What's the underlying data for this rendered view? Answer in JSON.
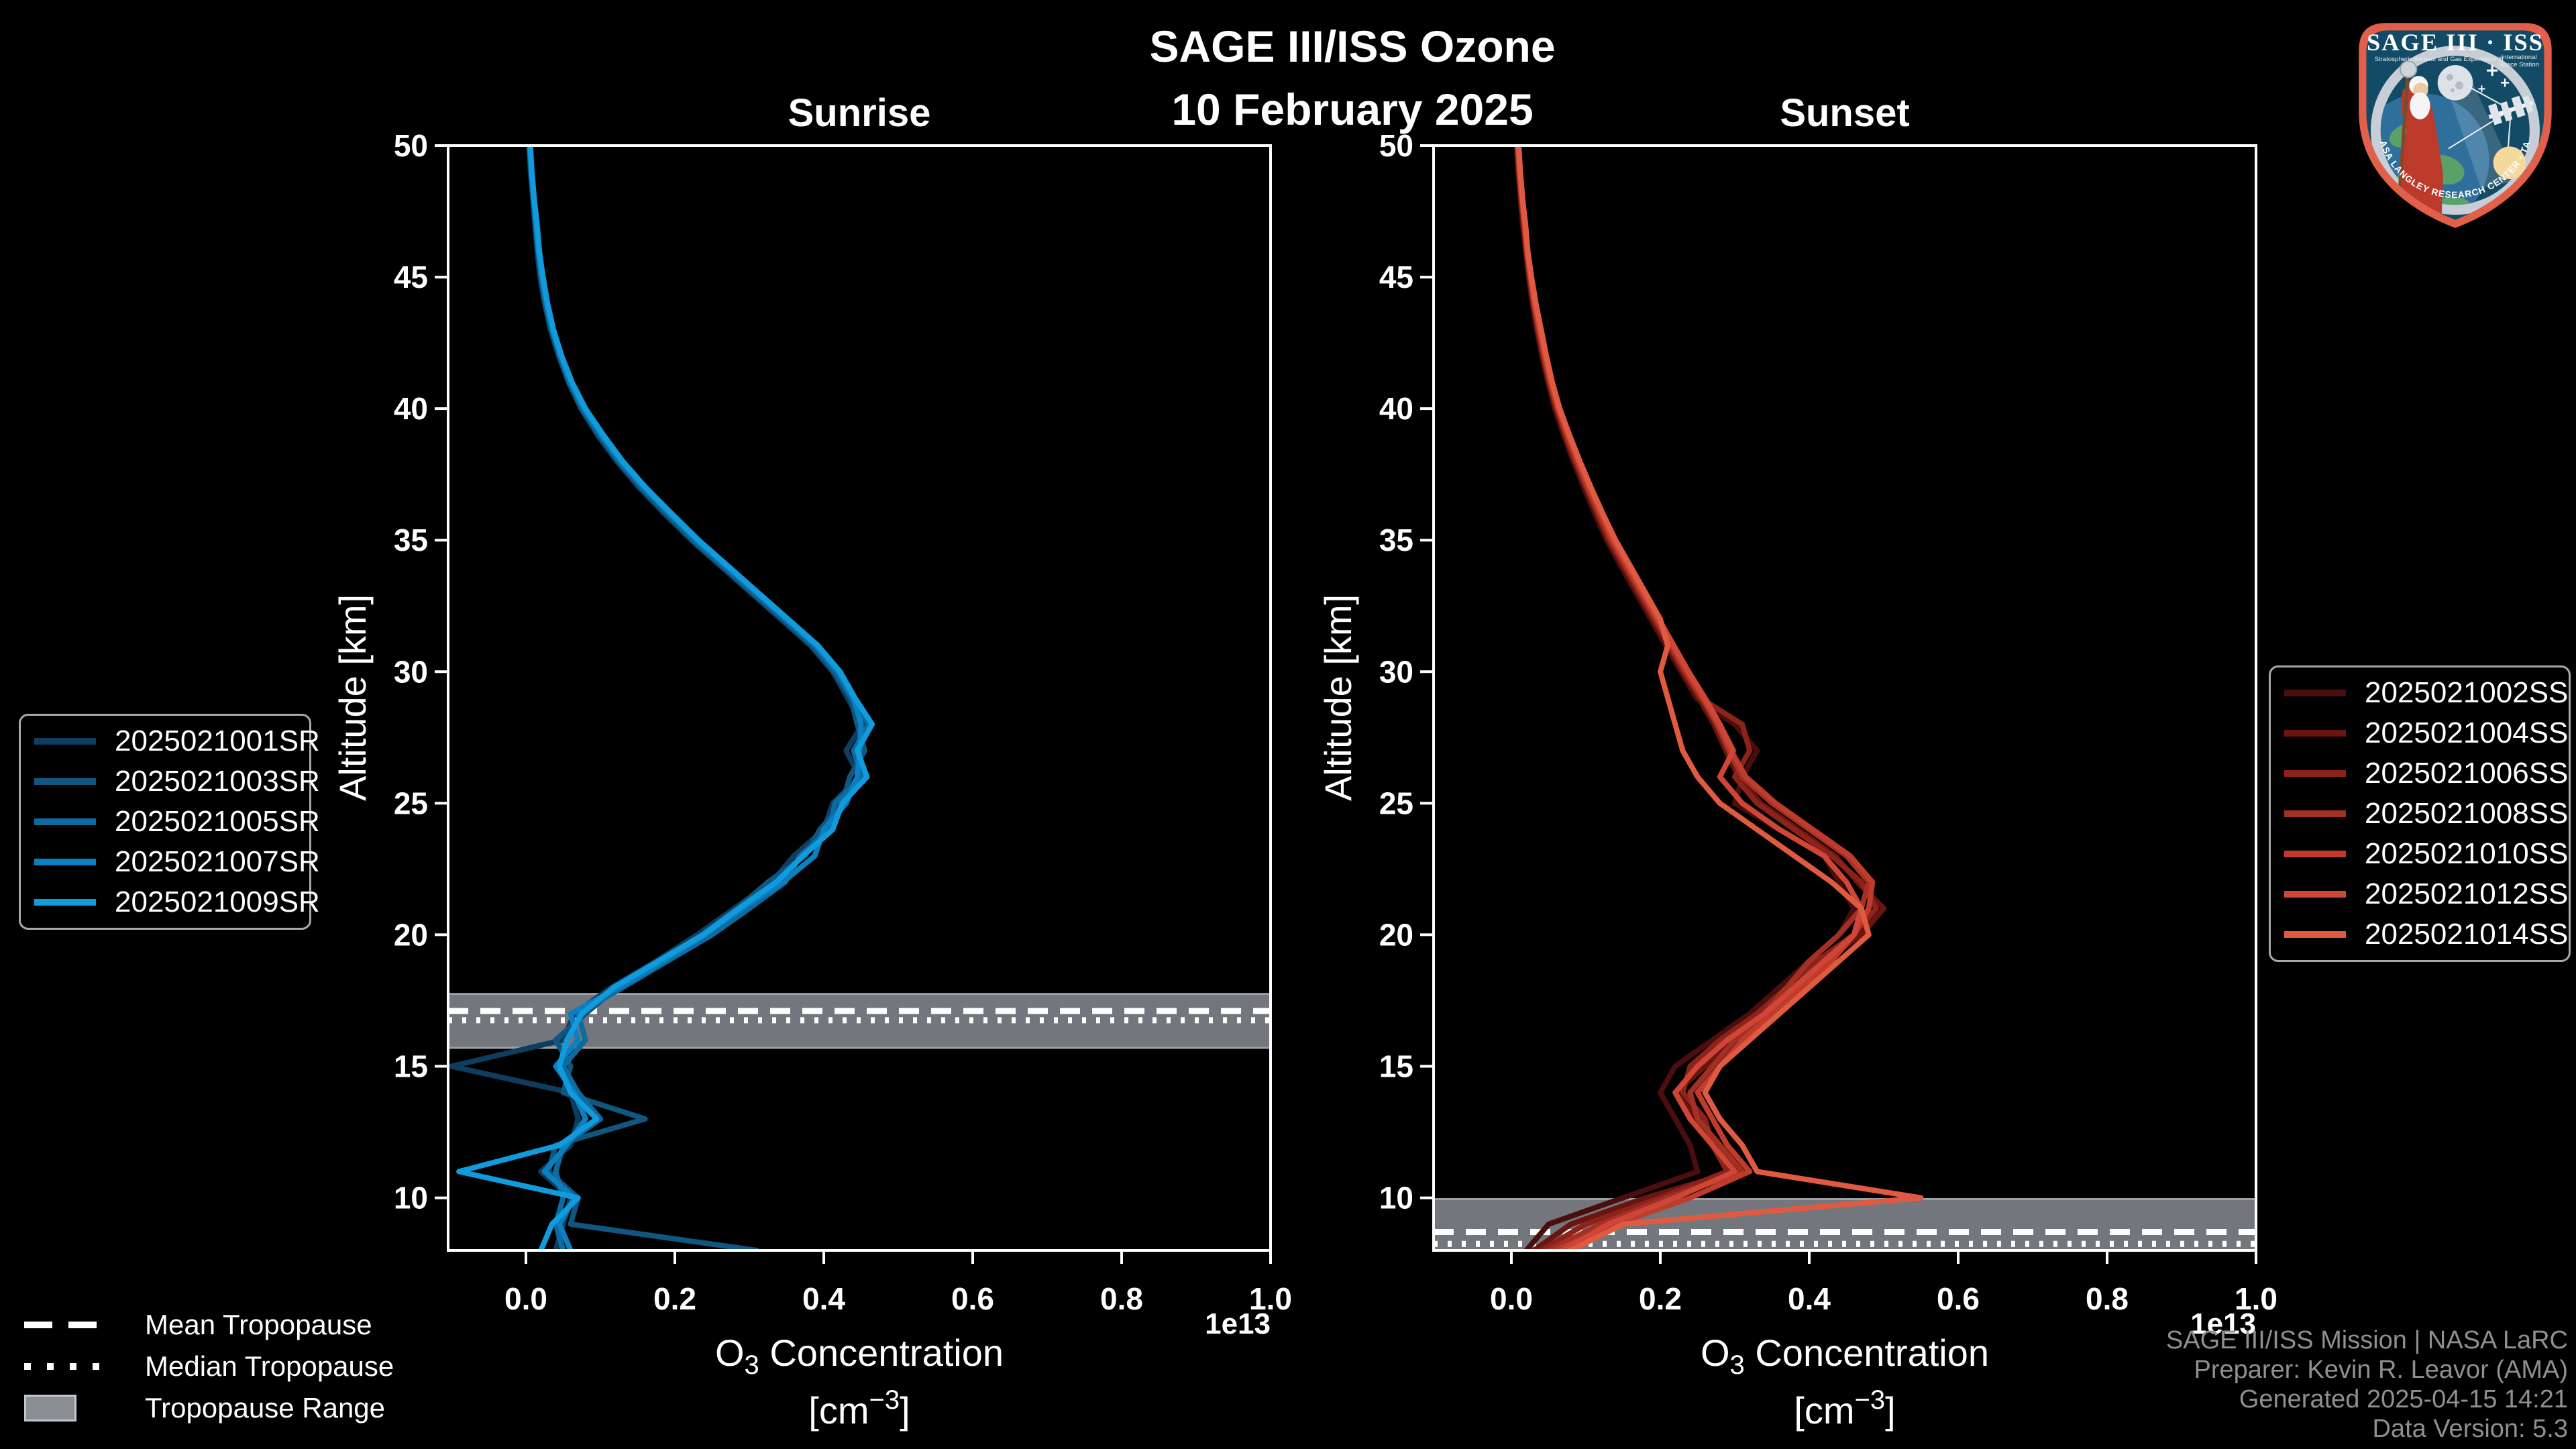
{
  "title": {
    "line1": "SAGE III/ISS Ozone",
    "line2": "10 February 2025"
  },
  "footer": {
    "line1": "SAGE III/ISS Mission | NASA LaRC",
    "line2": "Preparer: Kevin R. Leavor (AMA)",
    "line3": "Generated 2025-04-15 14:21",
    "line4": "Data Version: 5.3"
  },
  "tropopause_legend": {
    "mean_label": "Mean Tropopause",
    "median_label": "Median Tropopause",
    "range_label": "Tropopause Range"
  },
  "logo": {
    "mission": "SAGE III · ISS",
    "sub_left": "Stratospheric Aerosol and Gas Experiment III",
    "sub_right1": "International",
    "sub_right2": "Space Station",
    "ring_text": "BALL • NASA LANGLEY RESEARCH CENTER • TAS-I • ESA"
  },
  "colors": {
    "background": "#000000",
    "axis": "#ffffff",
    "band_fill": "#73777d",
    "band_edge": "#9ba0a5",
    "credits_gray": "#8d9093"
  },
  "chart_data": [
    {
      "type": "line",
      "title": "Sunrise",
      "ylabel": "Altitude [km]",
      "xlabel_parts": {
        "prefix": "O",
        "sub": "3",
        "suffix": " Concentration",
        "unit_open": "[cm",
        "unit_sup": "−3",
        "unit_close": "]"
      },
      "offset_text": "1e13",
      "xlim": [
        -0.1045,
        1.0
      ],
      "ylim": [
        8,
        50
      ],
      "x_ticks": [
        0.0,
        0.2,
        0.4,
        0.6,
        0.8,
        1.0
      ],
      "x_tick_labels": [
        "0.0",
        "0.2",
        "0.4",
        "0.6",
        "0.8",
        "1.0"
      ],
      "y_ticks": [
        50,
        45,
        40,
        35,
        30,
        25,
        20,
        15,
        10
      ],
      "y_tick_labels": [
        "50",
        "45",
        "40",
        "35",
        "30",
        "25",
        "20",
        "15",
        "10"
      ],
      "grid": false,
      "legend_position": "left-outside",
      "tropopause": {
        "mean": 17.1,
        "median": 16.75,
        "range": [
          15.7,
          17.75
        ]
      },
      "altitudes": [
        50,
        49,
        48,
        47,
        46,
        45,
        44,
        43,
        42,
        41,
        40,
        39,
        38,
        37,
        36,
        35,
        34,
        33,
        32,
        31,
        30,
        29,
        28,
        27,
        26,
        25,
        24,
        23,
        22,
        21,
        20,
        19,
        18,
        17,
        16,
        15,
        14,
        13,
        12,
        11,
        10,
        9,
        8
      ],
      "series": [
        {
          "name": "2025021001SR",
          "color": "#0e3d60",
          "values": [
            0.004,
            0.006,
            0.009,
            0.012,
            0.015,
            0.019,
            0.025,
            0.033,
            0.044,
            0.057,
            0.074,
            0.096,
            0.122,
            0.152,
            0.186,
            0.222,
            0.262,
            0.302,
            0.342,
            0.382,
            0.412,
            0.432,
            0.452,
            0.43,
            0.448,
            0.412,
            0.4,
            0.36,
            0.33,
            0.28,
            0.23,
            0.175,
            0.115,
            0.065,
            0.05,
            -0.1,
            0.06,
            0.07,
            0.06,
            0.02,
            0.06,
            0.05,
            0.04
          ]
        },
        {
          "name": "2025021003SR",
          "color": "#10567f",
          "values": [
            0.005,
            0.007,
            0.01,
            0.013,
            0.016,
            0.02,
            0.026,
            0.034,
            0.045,
            0.058,
            0.075,
            0.098,
            0.124,
            0.154,
            0.189,
            0.224,
            0.264,
            0.304,
            0.345,
            0.384,
            0.414,
            0.436,
            0.445,
            0.455,
            0.435,
            0.425,
            0.395,
            0.375,
            0.325,
            0.284,
            0.236,
            0.18,
            0.122,
            0.08,
            0.04,
            0.06,
            0.05,
            0.16,
            0.04,
            0.03,
            0.07,
            0.06,
            0.31
          ]
        },
        {
          "name": "2025021005SR",
          "color": "#0d6ba0",
          "values": [
            0.005,
            0.007,
            0.01,
            0.013,
            0.017,
            0.021,
            0.027,
            0.035,
            0.046,
            0.059,
            0.077,
            0.1,
            0.126,
            0.157,
            0.192,
            0.227,
            0.267,
            0.308,
            0.348,
            0.388,
            0.417,
            0.438,
            0.46,
            0.44,
            0.452,
            0.415,
            0.408,
            0.368,
            0.348,
            0.3,
            0.25,
            0.19,
            0.13,
            0.07,
            0.08,
            0.05,
            0.07,
            0.1,
            0.05,
            0.04,
            0.05,
            0.04,
            0.05
          ]
        },
        {
          "name": "2025021007SR",
          "color": "#0c7fc0",
          "values": [
            0.005,
            0.008,
            0.011,
            0.014,
            0.017,
            0.022,
            0.028,
            0.036,
            0.047,
            0.061,
            0.078,
            0.102,
            0.128,
            0.159,
            0.194,
            0.23,
            0.27,
            0.31,
            0.35,
            0.39,
            0.42,
            0.44,
            0.45,
            0.448,
            0.445,
            0.43,
            0.4,
            0.388,
            0.345,
            0.29,
            0.24,
            0.185,
            0.125,
            0.06,
            0.07,
            0.04,
            0.065,
            0.08,
            0.055,
            0.025,
            0.065,
            0.045,
            0.06
          ]
        },
        {
          "name": "2025021009SR",
          "color": "#109bdd",
          "values": [
            0.006,
            0.008,
            0.011,
            0.015,
            0.018,
            0.023,
            0.029,
            0.037,
            0.048,
            0.062,
            0.08,
            0.104,
            0.13,
            0.161,
            0.196,
            0.232,
            0.272,
            0.312,
            0.352,
            0.392,
            0.422,
            0.442,
            0.465,
            0.445,
            0.458,
            0.425,
            0.412,
            0.372,
            0.336,
            0.286,
            0.238,
            0.178,
            0.118,
            0.075,
            0.055,
            0.045,
            0.06,
            0.095,
            0.045,
            -0.09,
            0.07,
            0.035,
            0.02
          ]
        }
      ]
    },
    {
      "type": "line",
      "title": "Sunset",
      "ylabel": "Altitude [km]",
      "xlabel_parts": {
        "prefix": "O",
        "sub": "3",
        "suffix": " Concentration",
        "unit_open": "[cm",
        "unit_sup": "−3",
        "unit_close": "]"
      },
      "offset_text": "1e13",
      "xlim": [
        -0.1045,
        1.0
      ],
      "ylim": [
        8,
        50
      ],
      "x_ticks": [
        0.0,
        0.2,
        0.4,
        0.6,
        0.8,
        1.0
      ],
      "x_tick_labels": [
        "0.0",
        "0.2",
        "0.4",
        "0.6",
        "0.8",
        "1.0"
      ],
      "y_ticks": [
        50,
        45,
        40,
        35,
        30,
        25,
        20,
        15,
        10
      ],
      "y_tick_labels": [
        "50",
        "45",
        "40",
        "35",
        "30",
        "25",
        "20",
        "15",
        "10"
      ],
      "grid": false,
      "legend_position": "right-outside",
      "tropopause": {
        "mean": 8.7,
        "median": 8.25,
        "range": [
          7.2,
          9.95
        ]
      },
      "altitudes": [
        50,
        49,
        48,
        47,
        46,
        45,
        44,
        43,
        42,
        41,
        40,
        39,
        38,
        37,
        36,
        35,
        34,
        33,
        32,
        31,
        30,
        29,
        28,
        27,
        26,
        25,
        24,
        23,
        22,
        21,
        20,
        19,
        18,
        17,
        16,
        15,
        14,
        13,
        12,
        11,
        10,
        9,
        8
      ],
      "series": [
        {
          "name": "2025021002SS",
          "color": "#4a0e0e",
          "values": [
            0.007,
            0.009,
            0.012,
            0.015,
            0.019,
            0.023,
            0.028,
            0.034,
            0.041,
            0.049,
            0.058,
            0.07,
            0.083,
            0.097,
            0.112,
            0.128,
            0.147,
            0.167,
            0.187,
            0.207,
            0.228,
            0.248,
            0.3,
            0.33,
            0.31,
            0.3,
            0.36,
            0.42,
            0.44,
            0.46,
            0.44,
            0.4,
            0.36,
            0.32,
            0.27,
            0.22,
            0.2,
            0.22,
            0.24,
            0.25,
            0.15,
            0.05,
            0.02
          ]
        },
        {
          "name": "2025021004SS",
          "color": "#6b1511",
          "values": [
            0.008,
            0.01,
            0.013,
            0.016,
            0.02,
            0.024,
            0.029,
            0.035,
            0.042,
            0.05,
            0.06,
            0.072,
            0.085,
            0.1,
            0.115,
            0.13,
            0.15,
            0.17,
            0.19,
            0.21,
            0.23,
            0.252,
            0.272,
            0.288,
            0.305,
            0.335,
            0.385,
            0.435,
            0.465,
            0.5,
            0.47,
            0.42,
            0.38,
            0.35,
            0.3,
            0.26,
            0.22,
            0.25,
            0.28,
            0.3,
            0.18,
            0.08,
            0.03
          ]
        },
        {
          "name": "2025021006SS",
          "color": "#8c231a",
          "values": [
            0.008,
            0.01,
            0.013,
            0.017,
            0.02,
            0.025,
            0.03,
            0.036,
            0.043,
            0.051,
            0.061,
            0.073,
            0.086,
            0.101,
            0.116,
            0.132,
            0.152,
            0.172,
            0.192,
            0.212,
            0.232,
            0.254,
            0.31,
            0.32,
            0.3,
            0.33,
            0.38,
            0.43,
            0.47,
            0.49,
            0.46,
            0.41,
            0.37,
            0.33,
            0.28,
            0.24,
            0.23,
            0.26,
            0.27,
            0.29,
            0.2,
            0.1,
            0.04
          ]
        },
        {
          "name": "2025021008SS",
          "color": "#a33024",
          "values": [
            0.008,
            0.011,
            0.014,
            0.017,
            0.021,
            0.025,
            0.03,
            0.037,
            0.044,
            0.052,
            0.062,
            0.074,
            0.088,
            0.102,
            0.118,
            0.134,
            0.154,
            0.174,
            0.194,
            0.214,
            0.234,
            0.256,
            0.276,
            0.292,
            0.31,
            0.35,
            0.4,
            0.45,
            0.48,
            0.47,
            0.44,
            0.4,
            0.37,
            0.34,
            0.3,
            0.27,
            0.24,
            0.25,
            0.28,
            0.31,
            0.21,
            0.12,
            0.05
          ]
        },
        {
          "name": "2025021010SS",
          "color": "#bf3b2b",
          "values": [
            0.009,
            0.011,
            0.014,
            0.018,
            0.021,
            0.026,
            0.031,
            0.038,
            0.045,
            0.053,
            0.063,
            0.076,
            0.089,
            0.104,
            0.12,
            0.136,
            0.156,
            0.176,
            0.196,
            0.216,
            0.236,
            0.258,
            0.278,
            0.295,
            0.315,
            0.355,
            0.405,
            0.455,
            0.485,
            0.48,
            0.46,
            0.43,
            0.39,
            0.35,
            0.31,
            0.28,
            0.25,
            0.27,
            0.29,
            0.32,
            0.24,
            0.14,
            0.06
          ]
        },
        {
          "name": "2025021012SS",
          "color": "#cf4636",
          "values": [
            0.009,
            0.012,
            0.015,
            0.018,
            0.022,
            0.026,
            0.032,
            0.039,
            0.046,
            0.054,
            0.064,
            0.077,
            0.091,
            0.106,
            0.122,
            0.138,
            0.158,
            0.178,
            0.198,
            0.218,
            0.238,
            0.26,
            0.28,
            0.298,
            0.28,
            0.31,
            0.36,
            0.42,
            0.45,
            0.47,
            0.46,
            0.42,
            0.38,
            0.34,
            0.29,
            0.25,
            0.22,
            0.24,
            0.27,
            0.3,
            0.22,
            0.13,
            0.07
          ]
        },
        {
          "name": "2025021014SS",
          "color": "#e05a41",
          "values": [
            0.01,
            0.012,
            0.015,
            0.019,
            0.022,
            0.027,
            0.033,
            0.04,
            0.047,
            0.055,
            0.065,
            0.078,
            0.092,
            0.107,
            0.123,
            0.14,
            0.16,
            0.18,
            0.2,
            0.21,
            0.2,
            0.21,
            0.22,
            0.23,
            0.25,
            0.28,
            0.33,
            0.38,
            0.43,
            0.47,
            0.48,
            0.44,
            0.4,
            0.36,
            0.32,
            0.28,
            0.26,
            0.28,
            0.31,
            0.33,
            0.55,
            0.15,
            0.08
          ]
        }
      ]
    }
  ]
}
